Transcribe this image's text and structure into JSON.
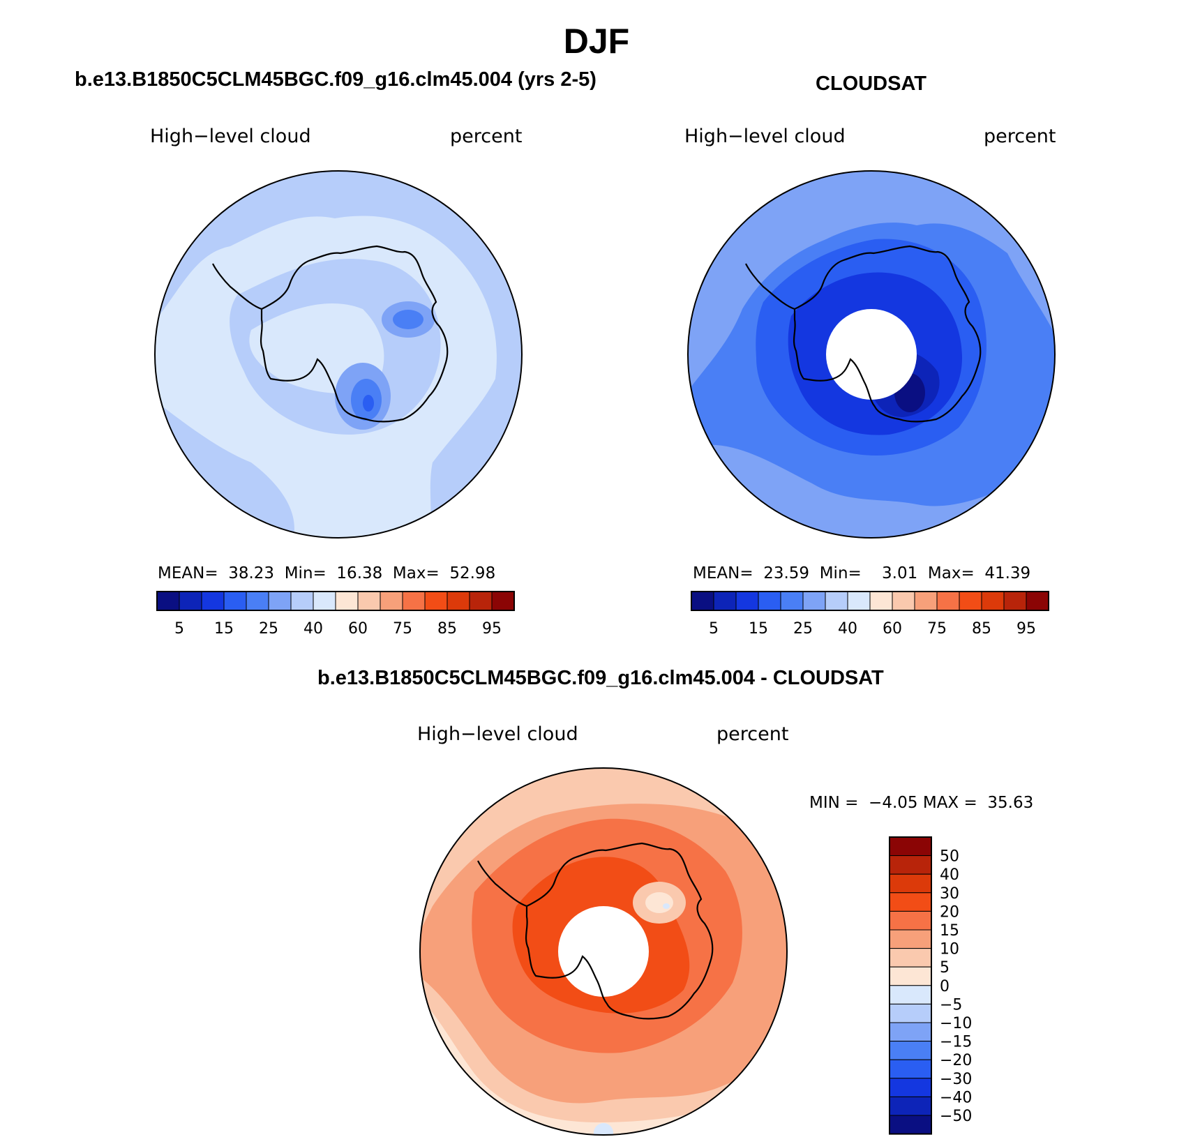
{
  "title": "DJF",
  "panels": [
    {
      "id": "model",
      "header": "b.e13.B1850C5CLM45BGC.f09_g16.clm45.004 (yrs 2-5)",
      "variable": "High−level cloud",
      "units": "percent",
      "stats": {
        "mean_label": "MEAN=",
        "mean": "38.23",
        "min_label": "Min=",
        "min": "16.38",
        "max_label": "Max=",
        "max": "52.98"
      }
    },
    {
      "id": "obs",
      "header": "CLOUDSAT",
      "variable": "High−level cloud",
      "units": "percent",
      "stats": {
        "mean_label": "MEAN=",
        "mean": "23.59",
        "min_label": "Min=",
        "min": "3.01",
        "max_label": "Max=",
        "max": "41.39"
      }
    },
    {
      "id": "diff",
      "header": "b.e13.B1850C5CLM45BGC.f09_g16.clm45.004 - CLOUDSAT",
      "variable": "High−level cloud",
      "units": "percent",
      "stats": {
        "min_label": "MIN =",
        "min": "−4.05",
        "max_label": "MAX =",
        "max": "35.63"
      }
    }
  ],
  "colorbar_horizontal": {
    "colors": [
      "#0a0f82",
      "#0d24b8",
      "#1437e0",
      "#2a5ef2",
      "#4a7ff5",
      "#7ea3f6",
      "#b6cdfa",
      "#d9e8fc",
      "#fde6d5",
      "#fac9ae",
      "#f7a07a",
      "#f67246",
      "#f24d16",
      "#dc3a0a",
      "#b8240a",
      "#8b0505"
    ],
    "labels": [
      "5",
      "15",
      "25",
      "40",
      "60",
      "75",
      "85",
      "95"
    ]
  },
  "colorbar_vertical": {
    "colors": [
      "#8b0505",
      "#b8240a",
      "#dc3a0a",
      "#f24d16",
      "#f67246",
      "#f7a07a",
      "#fac9ae",
      "#fde6d5",
      "#d9e8fc",
      "#b6cdfa",
      "#7ea3f6",
      "#4a7ff5",
      "#2a5ef2",
      "#1437e0",
      "#0d24b8",
      "#0a0f82"
    ],
    "labels": [
      "50",
      "40",
      "30",
      "20",
      "15",
      "10",
      "5",
      "0",
      "−5",
      "−10",
      "−15",
      "−20",
      "−30",
      "−40",
      "−50"
    ]
  },
  "map_fills": {
    "model": {
      "base": "#b6cdfa",
      "light": "#d9e8fc",
      "mid": "#7ea3f6",
      "dark": "#4a7ff5",
      "deep": "#2a5ef2"
    },
    "obs": {
      "base": "#4a7ff5",
      "light": "#7ea3f6",
      "lighter": "#b6cdfa",
      "mid": "#2a5ef2",
      "dark": "#1437e0",
      "deep": "#0d24b8",
      "deepest": "#0a0f82"
    },
    "diff": {
      "base": "#f7a07a",
      "light": "#fac9ae",
      "lighter": "#fde6d5",
      "mid": "#f67246",
      "dark": "#f24d16",
      "pale_blue": "#d9e8fc"
    }
  }
}
